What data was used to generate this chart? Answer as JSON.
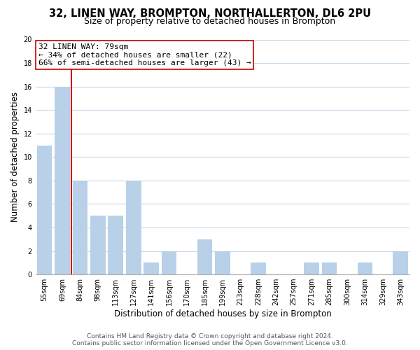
{
  "title": "32, LINEN WAY, BROMPTON, NORTHALLERTON, DL6 2PU",
  "subtitle": "Size of property relative to detached houses in Brompton",
  "xlabel": "Distribution of detached houses by size in Brompton",
  "ylabel": "Number of detached properties",
  "categories": [
    "55sqm",
    "69sqm",
    "84sqm",
    "98sqm",
    "113sqm",
    "127sqm",
    "141sqm",
    "156sqm",
    "170sqm",
    "185sqm",
    "199sqm",
    "213sqm",
    "228sqm",
    "242sqm",
    "257sqm",
    "271sqm",
    "285sqm",
    "300sqm",
    "314sqm",
    "329sqm",
    "343sqm"
  ],
  "values": [
    11,
    16,
    8,
    5,
    5,
    8,
    1,
    2,
    0,
    3,
    2,
    0,
    1,
    0,
    0,
    1,
    1,
    0,
    1,
    0,
    2
  ],
  "bar_color": "#b8d0e8",
  "vline_color": "#cc0000",
  "annotation_line1": "32 LINEN WAY: 79sqm",
  "annotation_line2": "← 34% of detached houses are smaller (22)",
  "annotation_line3": "66% of semi-detached houses are larger (43) →",
  "annotation_box_color": "#ffffff",
  "annotation_box_edge": "#cc0000",
  "ylim": [
    0,
    20
  ],
  "yticks": [
    0,
    2,
    4,
    6,
    8,
    10,
    12,
    14,
    16,
    18,
    20
  ],
  "footer_line1": "Contains HM Land Registry data © Crown copyright and database right 2024.",
  "footer_line2": "Contains public sector information licensed under the Open Government Licence v3.0.",
  "background_color": "#ffffff",
  "grid_color": "#c8d8ea",
  "title_fontsize": 10.5,
  "subtitle_fontsize": 9,
  "axis_label_fontsize": 8.5,
  "tick_fontsize": 7,
  "annotation_fontsize": 8,
  "footer_fontsize": 6.5
}
